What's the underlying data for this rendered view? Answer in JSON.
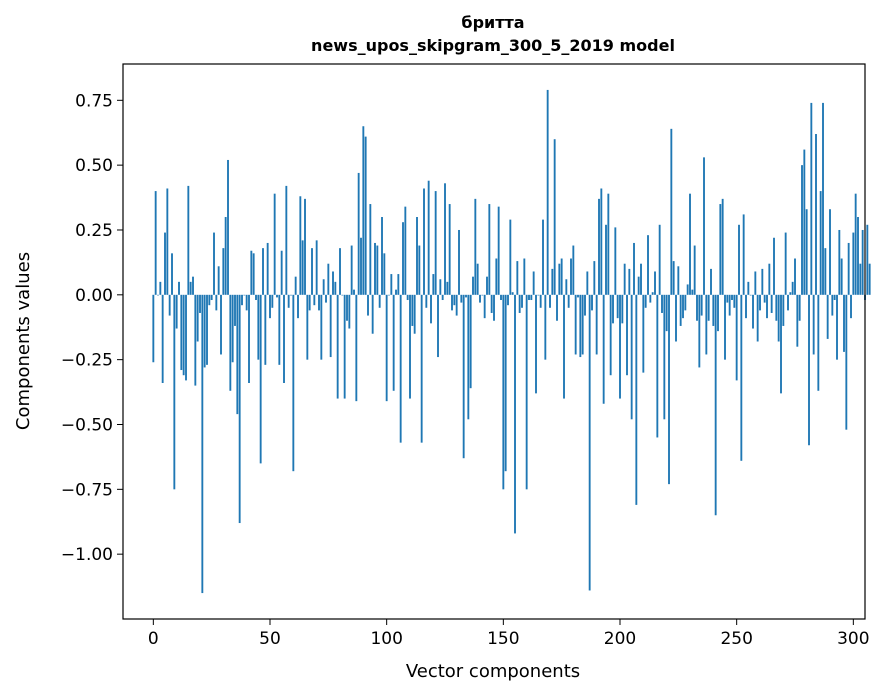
{
  "chart_data": {
    "type": "bar",
    "title": "бритта",
    "subtitle": "news_upos_skipgram_300_5_2019 model",
    "xlabel": "Vector components",
    "ylabel": "Components values",
    "xlim": [
      -13,
      305
    ],
    "ylim": [
      -1.25,
      0.89
    ],
    "xticks": [
      0,
      50,
      100,
      150,
      200,
      250,
      300
    ],
    "xtick_labels": [
      "0",
      "50",
      "100",
      "150",
      "200",
      "250",
      "300"
    ],
    "yticks": [
      -1.0,
      -0.75,
      -0.5,
      -0.25,
      0.0,
      0.25,
      0.5,
      0.75
    ],
    "ytick_labels": [
      "−1.00",
      "−0.75",
      "−0.50",
      "−0.25",
      "0.00",
      "0.25",
      "0.50",
      "0.75"
    ],
    "bar_color": "#1f77b4",
    "values": [
      -0.26,
      0.4,
      0.0,
      0.05,
      -0.34,
      0.24,
      0.41,
      -0.08,
      0.16,
      -0.75,
      -0.13,
      0.05,
      -0.29,
      -0.31,
      -0.33,
      0.42,
      0.05,
      0.07,
      -0.35,
      -0.18,
      -0.07,
      -1.15,
      -0.28,
      -0.27,
      -0.04,
      -0.02,
      0.24,
      -0.06,
      0.11,
      -0.23,
      0.18,
      0.3,
      0.52,
      -0.37,
      -0.26,
      -0.12,
      -0.46,
      -0.88,
      -0.04,
      0.0,
      -0.06,
      -0.34,
      0.17,
      0.16,
      -0.02,
      -0.25,
      -0.65,
      0.18,
      -0.27,
      0.2,
      -0.09,
      -0.05,
      0.39,
      -0.01,
      -0.27,
      0.17,
      -0.34,
      0.42,
      -0.05,
      0.0,
      -0.68,
      0.07,
      -0.09,
      0.38,
      0.21,
      0.37,
      -0.25,
      -0.06,
      0.18,
      -0.04,
      0.21,
      -0.06,
      -0.25,
      0.06,
      -0.03,
      0.12,
      -0.24,
      0.09,
      0.05,
      -0.4,
      0.18,
      0.0,
      -0.4,
      -0.1,
      -0.13,
      0.19,
      0.02,
      -0.41,
      0.47,
      0.22,
      0.65,
      0.61,
      -0.08,
      0.35,
      -0.15,
      0.2,
      0.19,
      -0.05,
      0.3,
      0.16,
      -0.41,
      0.0,
      0.08,
      -0.37,
      0.02,
      0.08,
      -0.57,
      0.28,
      0.34,
      -0.02,
      -0.4,
      -0.12,
      -0.15,
      0.3,
      0.19,
      -0.57,
      0.41,
      -0.05,
      0.44,
      -0.11,
      0.08,
      0.4,
      -0.24,
      0.06,
      -0.02,
      0.43,
      0.05,
      0.35,
      -0.06,
      -0.04,
      -0.08,
      0.25,
      -0.03,
      -0.63,
      -0.01,
      -0.48,
      -0.36,
      0.07,
      0.37,
      0.12,
      -0.03,
      0.0,
      -0.09,
      0.07,
      0.35,
      -0.07,
      -0.1,
      0.14,
      0.34,
      -0.02,
      -0.75,
      -0.68,
      -0.04,
      0.29,
      0.01,
      -0.92,
      0.13,
      -0.07,
      -0.05,
      0.14,
      -0.75,
      -0.02,
      -0.02,
      0.09,
      -0.38,
      0.0,
      -0.05,
      0.29,
      -0.25,
      0.79,
      -0.05,
      0.1,
      0.6,
      -0.1,
      0.12,
      0.14,
      -0.4,
      0.06,
      -0.05,
      0.14,
      0.19,
      -0.23,
      -0.01,
      -0.24,
      -0.23,
      -0.08,
      0.09,
      -1.14,
      -0.06,
      0.13,
      -0.23,
      0.37,
      0.41,
      -0.42,
      0.27,
      0.39,
      -0.31,
      -0.11,
      0.26,
      -0.09,
      -0.4,
      -0.11,
      0.12,
      -0.31,
      0.1,
      -0.48,
      0.2,
      -0.81,
      0.07,
      0.12,
      -0.3,
      -0.05,
      0.23,
      -0.03,
      0.01,
      0.09,
      -0.55,
      0.27,
      -0.07,
      -0.48,
      -0.14,
      -0.73,
      0.64,
      0.13,
      -0.18,
      0.11,
      -0.12,
      -0.09,
      -0.06,
      0.04,
      0.39,
      0.02,
      0.19,
      -0.1,
      -0.28,
      -0.08,
      0.53,
      -0.23,
      -0.1,
      0.1,
      -0.12,
      -0.85,
      -0.14,
      0.35,
      0.37,
      -0.25,
      -0.03,
      -0.08,
      -0.02,
      -0.05,
      -0.33,
      0.27,
      -0.64,
      0.31,
      -0.09,
      0.05,
      0.0,
      -0.13,
      0.09,
      -0.18,
      -0.06,
      0.1,
      -0.03,
      -0.09,
      0.12,
      -0.07,
      0.22,
      -0.1,
      -0.18,
      -0.38,
      -0.12,
      0.24,
      -0.06,
      0.01,
      0.05,
      0.14,
      -0.2,
      -0.1,
      0.5,
      0.56,
      0.33,
      -0.58,
      0.74,
      -0.23,
      0.62,
      -0.37,
      0.4,
      0.74,
      0.18,
      -0.17,
      0.33,
      -0.08,
      -0.02,
      -0.25,
      0.25,
      0.14,
      -0.22,
      -0.52,
      0.2,
      -0.09,
      0.24,
      0.39,
      0.3,
      0.12,
      0.25,
      -0.02,
      0.27,
      0.12
    ]
  }
}
